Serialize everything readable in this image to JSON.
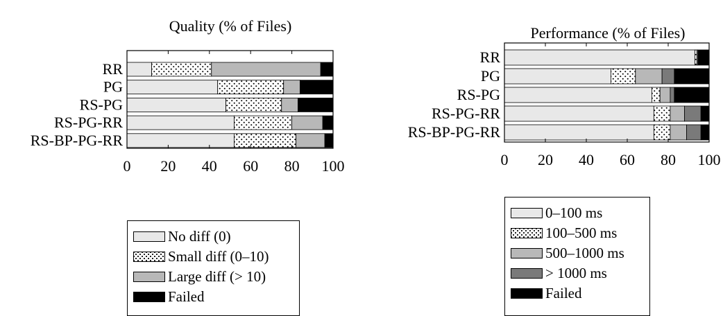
{
  "colors": {
    "no_diff": "#e8e8e8",
    "large_diff": "#b8b8b8",
    "ms_0_100": "#e8e8e8",
    "ms_500_1000": "#b8b8b8",
    "ms_over_1000": "#7a7a7a",
    "failed": "#000000",
    "dots": "#000000"
  },
  "chart_data": [
    {
      "type": "bar",
      "orientation": "horizontal",
      "stacked": true,
      "title": "Quality (% of Files)",
      "categories": [
        "RR",
        "PG",
        "RS-PG",
        "RS-PG-RR",
        "RS-BP-PG-RR"
      ],
      "xlim": [
        0,
        100
      ],
      "xticks": [
        0,
        20,
        40,
        60,
        80,
        100
      ],
      "legend_position": "below",
      "series": [
        {
          "name": "No diff (0)",
          "color_key": "no_diff",
          "values": [
            12,
            44,
            48,
            52,
            52
          ]
        },
        {
          "name": "Small diff (0–10)",
          "color_key": "dots",
          "pattern": "dots",
          "values": [
            29,
            32,
            27,
            28,
            30
          ]
        },
        {
          "name": "Large diff (> 10)",
          "color_key": "large_diff",
          "values": [
            53,
            8,
            8,
            15,
            14
          ]
        },
        {
          "name": "Failed",
          "color_key": "failed",
          "values": [
            6,
            16,
            17,
            5,
            4
          ]
        }
      ]
    },
    {
      "type": "bar",
      "orientation": "horizontal",
      "stacked": true,
      "title": "Performance (% of Files)",
      "categories": [
        "RR",
        "PG",
        "RS-PG",
        "RS-PG-RR",
        "RS-BP-PG-RR"
      ],
      "xlim": [
        0,
        100
      ],
      "xticks": [
        0,
        20,
        40,
        60,
        80,
        100
      ],
      "legend_position": "below",
      "series": [
        {
          "name": "0–100 ms",
          "color_key": "ms_0_100",
          "values": [
            93,
            52,
            72,
            73,
            73
          ]
        },
        {
          "name": "100–500 ms",
          "color_key": "dots",
          "pattern": "dots",
          "values": [
            1,
            12,
            4,
            8,
            8
          ]
        },
        {
          "name": "500–1000 ms",
          "color_key": "ms_500_1000",
          "values": [
            0.5,
            13,
            5,
            7,
            8
          ]
        },
        {
          "name": "> 1000 ms",
          "color_key": "ms_over_1000",
          "values": [
            0,
            6,
            2,
            8,
            7
          ]
        },
        {
          "name": "Failed",
          "color_key": "failed",
          "values": [
            5.5,
            17,
            17,
            4,
            4
          ]
        }
      ]
    }
  ]
}
